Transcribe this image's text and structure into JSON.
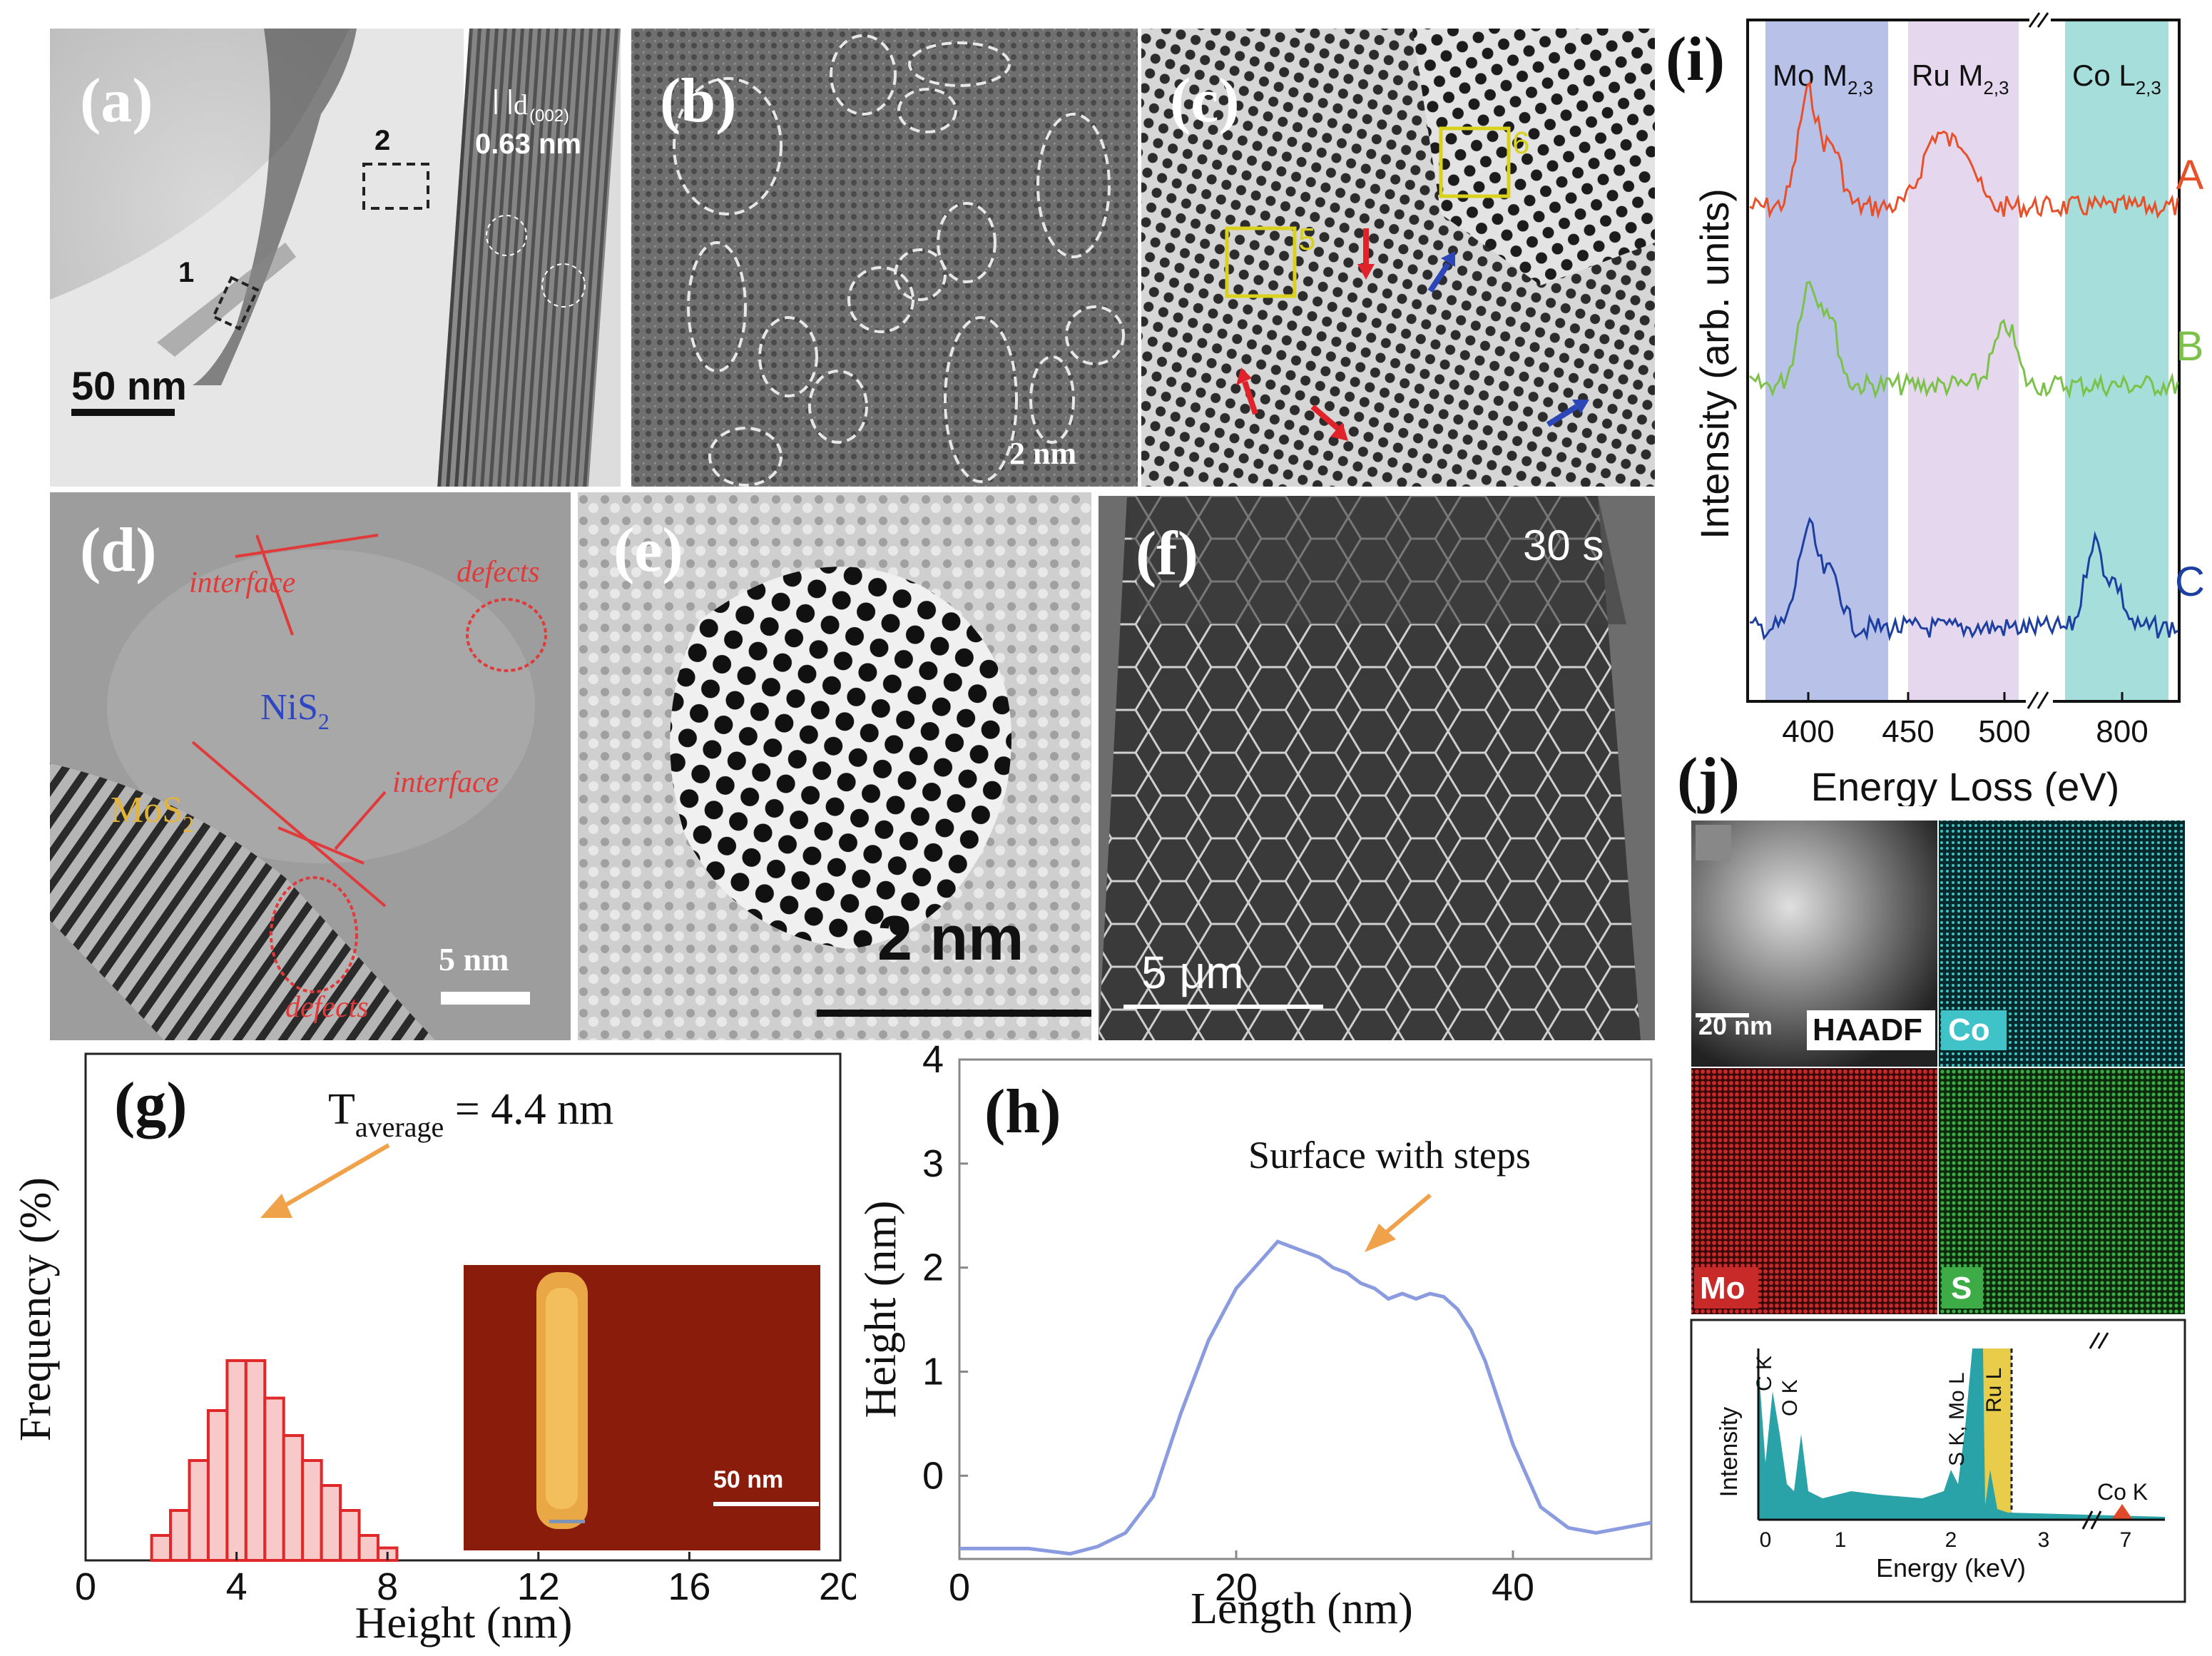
{
  "panel_a": {
    "label": "(a)",
    "scale": "50 nm",
    "region_1": "1",
    "region_2": "2",
    "inset_d_symbol": "d",
    "inset_d_sub": "(002)",
    "inset_spacing": "0.63 nm"
  },
  "panel_b": {
    "label": "(b)",
    "scale": "2 nm"
  },
  "panel_c": {
    "label": "(c)",
    "box_5": "5",
    "box_6": "6"
  },
  "panel_d": {
    "label": "(d)",
    "interface_top": "interface",
    "interface_mid": "interface",
    "defect_top": "defects",
    "defect_bottom": "defects",
    "nis2": "NiS",
    "nis2_sub": "2",
    "mos2": "MoS",
    "mos2_sub": "2",
    "scale": "5 nm"
  },
  "panel_e": {
    "label": "(e)",
    "scale": "2 nm"
  },
  "panel_f": {
    "label": "(f)",
    "time": "30 s",
    "scale": "5 μm"
  },
  "panel_g": {
    "label": "(g)",
    "annotation_main": "T",
    "annotation_sub": "average",
    "annotation_rest": " = 4.4 nm",
    "inset_scale": "50 nm"
  },
  "panel_h": {
    "label": "(h)",
    "annotation": "Surface with steps"
  },
  "panel_i": {
    "label": "(i)",
    "band_mo": "Mo M",
    "band_mo_sub": "2,3",
    "band_ru": "Ru M",
    "band_ru_sub": "2,3",
    "band_co": "Co L",
    "band_co_sub": "2,3",
    "trace_labels": [
      "A",
      "B",
      "C"
    ],
    "colors": {
      "A": "#e8502a",
      "B": "#7cc24a",
      "C": "#1d3fa0",
      "mo_band": "#b8c2e8",
      "ru_band": "#e5d8ee",
      "co_band": "#a6dedb"
    }
  },
  "panel_j": {
    "label": "(j)",
    "scale": "20 nm",
    "maps": [
      "HAADF",
      "Co",
      "Mo",
      "S"
    ],
    "edx": {
      "ylabel": "Intensity",
      "xlabel": "Energy (keV)",
      "ticks": [
        "0",
        "1",
        "2",
        "3",
        "7"
      ],
      "peaks": [
        "C K",
        "O K",
        "S K, Mo L",
        "Ru L",
        "Co K"
      ]
    }
  },
  "chart_data": [
    {
      "id": "g",
      "type": "bar",
      "title": "",
      "xlabel": "Height (nm)",
      "ylabel": "Frequency (%)",
      "xlim": [
        0,
        20
      ],
      "x_ticks": [
        "0",
        "4",
        "8",
        "12",
        "16",
        "20"
      ],
      "bin_centers": [
        2.0,
        2.5,
        3.0,
        3.5,
        4.0,
        4.5,
        5.0,
        5.5,
        6.0,
        6.5,
        7.0,
        7.5,
        8.0
      ],
      "values": [
        2,
        4,
        8,
        12,
        16,
        16,
        13,
        10,
        8,
        6,
        4,
        2,
        1
      ],
      "mean_annotation": "T_average = 4.4 nm"
    },
    {
      "id": "h",
      "type": "line",
      "xlabel": "Length (nm)",
      "ylabel": "Height (nm)",
      "xlim": [
        0,
        50
      ],
      "ylim": [
        -0.8,
        4
      ],
      "x_ticks": [
        "0",
        "20",
        "40"
      ],
      "y_ticks": [
        "0",
        "1",
        "2",
        "3",
        "4"
      ],
      "x": [
        0,
        5,
        8,
        10,
        12,
        14,
        16,
        18,
        20,
        22,
        23,
        24,
        26,
        27,
        28,
        29,
        30,
        31,
        32,
        33,
        34,
        35,
        36,
        37,
        38,
        40,
        42,
        44,
        46,
        48,
        50
      ],
      "y": [
        -0.7,
        -0.7,
        -0.75,
        -0.68,
        -0.55,
        -0.2,
        0.6,
        1.3,
        1.8,
        2.1,
        2.25,
        2.2,
        2.1,
        2.0,
        1.95,
        1.85,
        1.8,
        1.7,
        1.75,
        1.7,
        1.75,
        1.72,
        1.6,
        1.4,
        1.1,
        0.3,
        -0.3,
        -0.5,
        -0.55,
        -0.5,
        -0.45
      ]
    },
    {
      "id": "i",
      "type": "line",
      "xlabel": "Energy Loss (eV)",
      "ylabel": "Intensity (arb. units)",
      "x_ticks": [
        "400",
        "450",
        "500",
        "800"
      ],
      "series": [
        {
          "name": "A"
        },
        {
          "name": "B"
        },
        {
          "name": "C"
        }
      ]
    }
  ]
}
